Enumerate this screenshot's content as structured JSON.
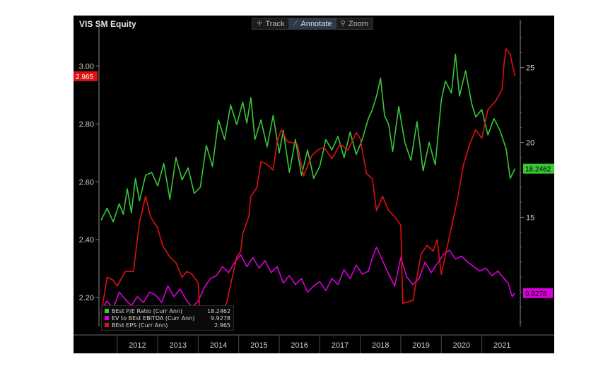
{
  "title": "VIS SM Equity",
  "toolbar": {
    "track_label": "Track",
    "annotate_label": "Annotate",
    "zoom_label": "Zoom"
  },
  "colors": {
    "pe": "#38c837",
    "ev": "#d800d8",
    "eps": "#e01010",
    "background": "#000000",
    "axis": "#cfcfcf"
  },
  "x_axis": {
    "labels": [
      "2012",
      "2013",
      "2014",
      "2015",
      "2016",
      "2017",
      "2018",
      "2019",
      "2020",
      "2021"
    ]
  },
  "left_axis": {
    "ticks": [
      2.2,
      2.4,
      2.6,
      2.8,
      3.0
    ],
    "tick_labels": [
      "2.20",
      "2.40",
      "2.60",
      "2.80",
      "3.00"
    ],
    "range": [
      2.1,
      3.16
    ],
    "last_label": "2.965"
  },
  "right_axis": {
    "ticks": [
      15,
      20,
      25
    ],
    "tick_labels": [
      "15",
      "20",
      "25"
    ],
    "range": [
      7.7,
      28.2
    ],
    "pe_last_label": "18.2462",
    "ev_last_label": "9.9278"
  },
  "legend": [
    {
      "name": "BEst P/E Ratio (Curr Ann)",
      "value": "18.2462",
      "color": "#38c837"
    },
    {
      "name": "EV to BEst EBITDA (Curr Ann)",
      "value": "9.9278",
      "color": "#d800d8"
    },
    {
      "name": "BEst EPS (Curr Ann)",
      "value": "2.965",
      "color": "#e01010"
    }
  ],
  "chart_data": {
    "type": "line",
    "title": "VIS SM Equity",
    "x_range": [
      2011.55,
      2021.95
    ],
    "series": [
      {
        "name": "BEst P/E Ratio (Curr Ann)",
        "axis": "right",
        "x": [
          2011.6,
          2011.75,
          2011.9,
          2012.05,
          2012.15,
          2012.25,
          2012.35,
          2012.45,
          2012.55,
          2012.7,
          2012.85,
          2013.0,
          2013.15,
          2013.3,
          2013.45,
          2013.6,
          2013.75,
          2013.9,
          2014.05,
          2014.2,
          2014.35,
          2014.5,
          2014.65,
          2014.8,
          2014.95,
          2015.1,
          2015.2,
          2015.3,
          2015.4,
          2015.55,
          2015.7,
          2015.85,
          2016.0,
          2016.1,
          2016.25,
          2016.4,
          2016.55,
          2016.7,
          2016.85,
          2017.0,
          2017.15,
          2017.3,
          2017.45,
          2017.6,
          2017.75,
          2017.9,
          2018.05,
          2018.2,
          2018.3,
          2018.4,
          2018.5,
          2018.6,
          2018.7,
          2018.8,
          2018.95,
          2019.1,
          2019.25,
          2019.4,
          2019.55,
          2019.7,
          2019.85,
          2020.0,
          2020.1,
          2020.25,
          2020.35,
          2020.45,
          2020.6,
          2020.75,
          2020.85,
          2021.0,
          2021.15,
          2021.3,
          2021.45,
          2021.6,
          2021.7,
          2021.82
        ],
        "values": [
          14.8,
          15.6,
          14.7,
          15.9,
          15.2,
          16.9,
          15.3,
          17.6,
          16.1,
          17.8,
          18.0,
          17.1,
          18.6,
          16.2,
          19.0,
          17.5,
          18.3,
          16.6,
          17.0,
          19.8,
          18.4,
          21.5,
          20.2,
          22.5,
          21.2,
          22.7,
          21.3,
          23.0,
          20.2,
          21.5,
          19.7,
          21.8,
          19.3,
          20.8,
          18.0,
          20.2,
          17.8,
          19.5,
          17.6,
          18.4,
          20.2,
          19.5,
          20.4,
          19.0,
          20.7,
          19.2,
          20.2,
          21.6,
          22.2,
          23.1,
          24.3,
          21.8,
          21.2,
          19.4,
          22.4,
          20.0,
          18.8,
          21.4,
          18.1,
          20.0,
          18.5,
          22.8,
          24.1,
          23.3,
          25.9,
          23.1,
          24.8,
          22.6,
          21.7,
          22.2,
          20.5,
          21.6,
          20.8,
          19.6,
          17.6,
          18.25
        ]
      },
      {
        "name": "EV to BEst EBITDA (Curr Ann)",
        "axis": "right",
        "x": [
          2011.6,
          2011.75,
          2011.9,
          2012.05,
          2012.2,
          2012.35,
          2012.5,
          2012.65,
          2012.8,
          2012.95,
          2013.1,
          2013.25,
          2013.4,
          2013.55,
          2013.7,
          2013.85,
          2014.0,
          2014.15,
          2014.3,
          2014.45,
          2014.6,
          2014.75,
          2014.9,
          2015.05,
          2015.2,
          2015.35,
          2015.5,
          2015.65,
          2015.8,
          2015.95,
          2016.1,
          2016.25,
          2016.4,
          2016.55,
          2016.7,
          2016.85,
          2017.0,
          2017.15,
          2017.3,
          2017.45,
          2017.6,
          2017.75,
          2017.9,
          2018.05,
          2018.2,
          2018.3,
          2018.4,
          2018.55,
          2018.7,
          2018.85,
          2019.0,
          2019.15,
          2019.3,
          2019.45,
          2019.6,
          2019.75,
          2019.9,
          2020.05,
          2020.2,
          2020.35,
          2020.5,
          2020.65,
          2020.8,
          2020.95,
          2021.1,
          2021.25,
          2021.4,
          2021.55,
          2021.65,
          2021.75,
          2021.82
        ],
        "values": [
          8.8,
          9.4,
          8.9,
          10.0,
          9.5,
          9.1,
          9.7,
          9.3,
          10.0,
          9.8,
          9.3,
          10.4,
          9.7,
          10.2,
          9.5,
          9.0,
          9.4,
          10.3,
          10.9,
          11.1,
          11.7,
          11.3,
          12.0,
          12.5,
          11.7,
          12.3,
          11.6,
          12.1,
          11.3,
          11.7,
          10.6,
          11.1,
          10.5,
          10.9,
          10.0,
          10.4,
          10.7,
          10.1,
          10.9,
          10.5,
          11.5,
          10.9,
          11.8,
          11.2,
          11.4,
          12.3,
          13.0,
          12.1,
          11.2,
          10.4,
          12.3,
          11.0,
          10.5,
          10.9,
          12.0,
          11.3,
          11.9,
          12.5,
          12.8,
          12.2,
          12.4,
          12.0,
          11.7,
          11.4,
          11.6,
          11.1,
          11.4,
          10.9,
          10.6,
          9.7,
          9.93
        ]
      },
      {
        "name": "BEst EPS (Curr Ann)",
        "axis": "left",
        "x": [
          2011.6,
          2011.75,
          2011.9,
          2012.0,
          2012.2,
          2012.4,
          2012.55,
          2012.7,
          2012.82,
          2013.0,
          2013.12,
          2013.3,
          2013.45,
          2013.6,
          2013.72,
          2013.85,
          2014.0,
          2014.05,
          2014.4,
          2014.55,
          2014.7,
          2014.95,
          2015.05,
          2015.1,
          2015.25,
          2015.3,
          2015.45,
          2015.55,
          2015.7,
          2015.85,
          2015.95,
          2016.05,
          2016.2,
          2016.45,
          2016.6,
          2016.8,
          2016.95,
          2017.1,
          2017.3,
          2017.5,
          2017.7,
          2017.9,
          2018.0,
          2018.15,
          2018.3,
          2018.4,
          2018.55,
          2018.7,
          2018.85,
          2019.0,
          2019.05,
          2019.3,
          2019.5,
          2019.65,
          2019.8,
          2019.9,
          2020.0,
          2020.2,
          2020.4,
          2020.55,
          2020.7,
          2020.85,
          2021.0,
          2021.15,
          2021.35,
          2021.5,
          2021.55,
          2021.6,
          2021.7,
          2021.82
        ],
        "values": [
          2.14,
          2.27,
          2.26,
          2.24,
          2.29,
          2.29,
          2.46,
          2.55,
          2.48,
          2.44,
          2.38,
          2.34,
          2.32,
          2.27,
          2.29,
          2.28,
          2.25,
          2.13,
          2.12,
          2.15,
          2.18,
          2.34,
          2.36,
          2.42,
          2.48,
          2.55,
          2.58,
          2.67,
          2.66,
          2.64,
          2.74,
          2.78,
          2.74,
          2.73,
          2.62,
          2.69,
          2.71,
          2.72,
          2.68,
          2.73,
          2.71,
          2.77,
          2.75,
          2.63,
          2.61,
          2.5,
          2.55,
          2.5,
          2.48,
          2.45,
          2.18,
          2.19,
          2.35,
          2.38,
          2.36,
          2.4,
          2.28,
          2.41,
          2.54,
          2.66,
          2.73,
          2.78,
          2.75,
          2.85,
          2.88,
          2.92,
          3.01,
          3.06,
          3.04,
          2.965
        ]
      }
    ]
  }
}
